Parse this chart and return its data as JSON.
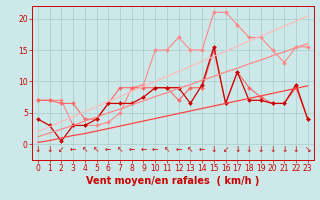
{
  "background_color": "#cce8e8",
  "grid_color": "#aacccc",
  "x_values": [
    0,
    1,
    2,
    3,
    4,
    5,
    6,
    7,
    8,
    9,
    10,
    11,
    12,
    13,
    14,
    15,
    16,
    17,
    18,
    19,
    20,
    21,
    22,
    23
  ],
  "lines": [
    {
      "color": "#ff8888",
      "lw": 0.8,
      "marker": "D",
      "ms": 2.0,
      "data": [
        7.0,
        7.0,
        7.0,
        3.0,
        3.0,
        3.0,
        3.5,
        5.0,
        9.0,
        9.5,
        15.0,
        15.0,
        17.0,
        15.0,
        15.0,
        21.0,
        21.0,
        19.0,
        17.0,
        17.0,
        15.0,
        13.0,
        15.5,
        15.5
      ]
    },
    {
      "color": "#ff6666",
      "lw": 0.8,
      "marker": "D",
      "ms": 2.0,
      "data": [
        7.0,
        7.0,
        6.5,
        6.5,
        4.0,
        4.0,
        6.5,
        9.0,
        9.0,
        9.0,
        9.0,
        9.0,
        7.0,
        9.0,
        9.0,
        15.0,
        6.5,
        11.5,
        9.0,
        7.5,
        6.5,
        6.5,
        9.0,
        4.0
      ]
    },
    {
      "color": "#cc0000",
      "lw": 0.9,
      "marker": "D",
      "ms": 2.0,
      "data": [
        4.0,
        3.0,
        0.5,
        3.0,
        3.0,
        4.0,
        6.5,
        6.5,
        6.5,
        7.5,
        9.0,
        9.0,
        9.0,
        6.5,
        9.5,
        15.5,
        6.5,
        11.5,
        7.0,
        7.0,
        6.5,
        6.5,
        9.5,
        4.0
      ]
    },
    {
      "color": "#ff4444",
      "lw": 0.9,
      "marker": null,
      "ms": 0,
      "data": [
        0.3,
        0.6,
        1.0,
        1.4,
        1.7,
        2.1,
        2.5,
        2.9,
        3.3,
        3.7,
        4.1,
        4.5,
        4.9,
        5.3,
        5.7,
        6.1,
        6.5,
        6.9,
        7.3,
        7.7,
        8.1,
        8.5,
        8.9,
        9.3
      ]
    },
    {
      "color": "#ff8888",
      "lw": 0.9,
      "marker": null,
      "ms": 0,
      "data": [
        1.2,
        1.8,
        2.4,
        3.0,
        3.7,
        4.3,
        5.0,
        5.6,
        6.3,
        6.9,
        7.6,
        8.2,
        8.9,
        9.5,
        10.2,
        10.8,
        11.5,
        12.1,
        12.8,
        13.4,
        14.1,
        14.7,
        15.4,
        16.0
      ]
    },
    {
      "color": "#ffbbbb",
      "lw": 0.9,
      "marker": null,
      "ms": 0,
      "data": [
        2.0,
        2.8,
        3.6,
        4.4,
        5.2,
        6.0,
        6.8,
        7.6,
        8.4,
        9.2,
        10.0,
        10.8,
        11.6,
        12.4,
        13.2,
        14.0,
        14.8,
        15.6,
        16.4,
        17.2,
        18.0,
        18.8,
        19.6,
        20.4
      ]
    }
  ],
  "wind_arrows": {
    "symbols": [
      "↓",
      "↓",
      "↙",
      "←",
      "↖",
      "↖",
      "←",
      "↖",
      "←",
      "←",
      "←",
      "↖",
      "←",
      "↖",
      "←",
      "↓",
      "↙",
      "↓",
      "↓",
      "↓",
      "↓",
      "↓",
      "↓",
      "↘"
    ],
    "y": -0.8,
    "color": "#cc0000",
    "fontsize": 5.5
  },
  "xlabel": "Vent moyen/en rafales  ( km/h )",
  "xlabel_color": "#cc0000",
  "xlabel_fontsize": 7,
  "yticks": [
    0,
    5,
    10,
    15,
    20
  ],
  "xlim": [
    -0.5,
    23.5
  ],
  "ylim": [
    -2.5,
    22
  ],
  "tick_color": "#cc0000",
  "tick_fontsize": 5.5
}
